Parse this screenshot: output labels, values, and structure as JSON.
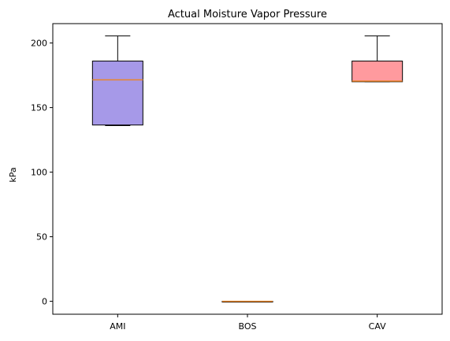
{
  "chart_data": {
    "type": "boxplot",
    "title": "Actual Moisture Vapor Pressure",
    "xlabel": "",
    "ylabel": "kPa",
    "ylim": [
      -10,
      215
    ],
    "yticks": [
      0,
      50,
      100,
      150,
      200
    ],
    "grid": false,
    "categories": [
      "AMI",
      "BOS",
      "CAV"
    ],
    "boxes": [
      {
        "name": "AMI",
        "whisker_low": 136,
        "q1": 136.5,
        "median": 171.5,
        "q3": 186,
        "whisker_high": 205.5,
        "fill": "#a699e8"
      },
      {
        "name": "BOS",
        "whisker_low": 0,
        "q1": 0,
        "median": 0,
        "q3": 0,
        "whisker_high": 0,
        "fill": "#ffffff"
      },
      {
        "name": "CAV",
        "whisker_low": 170,
        "q1": 170,
        "median": 170.5,
        "q3": 186,
        "whisker_high": 205.5,
        "fill": "#ff9a9e"
      }
    ],
    "median_color": "#e8862a",
    "line_color": "#000000"
  }
}
